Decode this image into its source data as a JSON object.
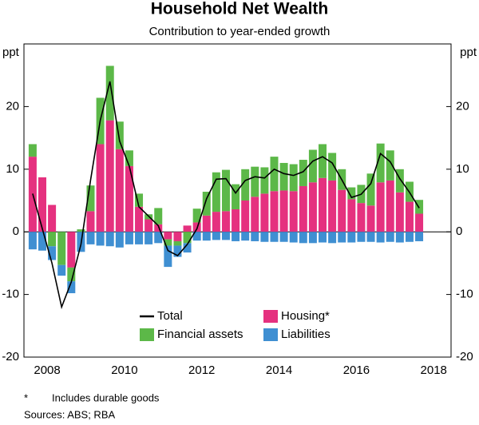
{
  "chart_data": {
    "type": "stacked-bar-line",
    "title": "Household Net Wealth",
    "subtitle": "Contribution to year-ended growth",
    "y_label": "ppt",
    "y2_label": "ppt",
    "x": [
      2008.125,
      2008.375,
      2008.625,
      2008.875,
      2009.125,
      2009.375,
      2009.625,
      2009.875,
      2010.125,
      2010.375,
      2010.625,
      2010.875,
      2011.125,
      2011.375,
      2011.625,
      2011.875,
      2012.125,
      2012.375,
      2012.625,
      2012.875,
      2013.125,
      2013.375,
      2013.625,
      2013.875,
      2014.125,
      2014.375,
      2014.625,
      2014.875,
      2015.125,
      2015.375,
      2015.625,
      2015.875,
      2016.125,
      2016.375,
      2016.625,
      2016.875,
      2017.125,
      2017.375,
      2017.625,
      2017.875,
      2018.125
    ],
    "xlim": [
      2007.9,
      2018.95
    ],
    "xticks": [
      {
        "value": 2008.5,
        "label": "2008"
      },
      {
        "value": 2010.5,
        "label": "2010"
      },
      {
        "value": 2012.5,
        "label": "2012"
      },
      {
        "value": 2014.5,
        "label": "2014"
      },
      {
        "value": 2016.5,
        "label": "2016"
      },
      {
        "value": 2018.5,
        "label": "2018"
      }
    ],
    "ylim": [
      -20,
      30
    ],
    "yticks": [
      -20,
      -10,
      0,
      10,
      20
    ],
    "y2lim": [
      -20,
      30
    ],
    "y2ticks": [
      -20,
      -10,
      0,
      10,
      20
    ],
    "series": [
      {
        "name": "Housing*",
        "kind": "bar",
        "color": "#e5317f",
        "values": [
          12,
          8.7,
          4.3,
          0,
          -5.7,
          0,
          3.3,
          14,
          17.8,
          13.2,
          10.5,
          4,
          2,
          1.2,
          -1.2,
          -1.5,
          1,
          1.5,
          2.6,
          3.2,
          3.3,
          3.6,
          5,
          5.6,
          6.1,
          6.5,
          6.6,
          6.5,
          7.3,
          7.9,
          8.6,
          8.2,
          6.7,
          5.2,
          4.6,
          4.2,
          7.9,
          8.2,
          6.3,
          4.8,
          2.9
        ]
      },
      {
        "name": "Financial assets",
        "kind": "bar",
        "color": "#5cb848",
        "values": [
          2,
          0,
          -2.3,
          -5.3,
          -2.2,
          0.4,
          4.1,
          7.4,
          8.7,
          4.4,
          2.5,
          2.1,
          0.8,
          2.6,
          -1,
          -0.7,
          -1.8,
          2.2,
          3.8,
          6.3,
          6.6,
          4,
          5,
          4.8,
          4.2,
          5.5,
          4.4,
          4.3,
          4.2,
          5.2,
          5.4,
          4.4,
          3.3,
          1.9,
          2.9,
          5.1,
          6.2,
          4.8,
          3.7,
          3.2,
          2.2
        ]
      },
      {
        "name": "Liabilities",
        "kind": "bar",
        "color": "#3f8fd2",
        "values": [
          -2.8,
          -3,
          -2.2,
          -1.7,
          -1.9,
          -3.2,
          -2,
          -2.2,
          -2.3,
          -2.5,
          -2,
          -2,
          -2,
          -1.8,
          -3.4,
          -1.8,
          -1.5,
          -1.4,
          -1.4,
          -1.3,
          -1.3,
          -1.5,
          -1.4,
          -1.5,
          -1.6,
          -1.6,
          -1.6,
          -1.7,
          -1.8,
          -1.8,
          -1.7,
          -1.8,
          -1.7,
          -1.7,
          -1.6,
          -1.6,
          -1.7,
          -1.6,
          -1.7,
          -1.6,
          -1.5
        ]
      },
      {
        "name": "Total",
        "kind": "line",
        "color": "#000000",
        "values": [
          6.1,
          0.5,
          -5,
          -12,
          -8,
          -2,
          8.3,
          17.8,
          24,
          14.5,
          10.5,
          4,
          2.5,
          1,
          -3,
          -3.8,
          -2,
          0.5,
          5.3,
          8.4,
          8.5,
          6.2,
          8.2,
          8.8,
          8.6,
          10,
          9.3,
          9,
          9.6,
          11.3,
          12,
          11,
          8.3,
          5.5,
          6,
          7.7,
          12.5,
          11.2,
          8.5,
          6.3,
          3.8
        ]
      }
    ],
    "footnote_marker": "*",
    "footnote": "Includes durable goods",
    "sources": "Sources: ABS; RBA"
  }
}
